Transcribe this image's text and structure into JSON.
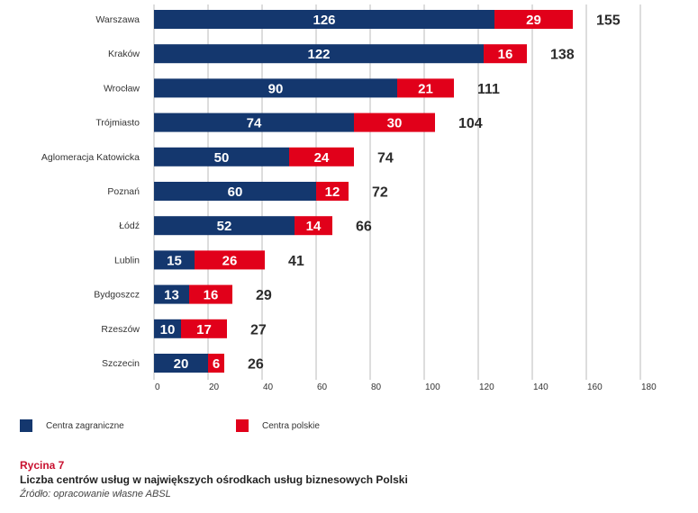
{
  "colors": {
    "foreign": "#14376e",
    "polish": "#e1001a",
    "caption_accent": "#c8102e",
    "axis": "#bbbbbb"
  },
  "chart_data": {
    "type": "bar",
    "orientation": "horizontal",
    "stacked": true,
    "categories": [
      "Warszawa",
      "Kraków",
      "Wrocław",
      "Trójmiasto",
      "Aglomeracja Katowicka",
      "Poznań",
      "Łódź",
      "Lublin",
      "Bydgoszcz",
      "Rzeszów",
      "Szczecin"
    ],
    "series": [
      {
        "name": "Centra zagraniczne",
        "values": [
          126,
          122,
          90,
          74,
          50,
          60,
          52,
          15,
          13,
          10,
          20
        ]
      },
      {
        "name": "Centra polskie",
        "values": [
          29,
          16,
          21,
          30,
          24,
          12,
          14,
          26,
          16,
          17,
          6
        ]
      }
    ],
    "totals": [
      155,
      138,
      111,
      104,
      74,
      72,
      66,
      41,
      29,
      27,
      26
    ],
    "xlim": [
      0,
      180
    ],
    "xticks": [
      0,
      20,
      40,
      60,
      80,
      100,
      120,
      140,
      160,
      180
    ],
    "grid": true,
    "legend_position": "bottom-left"
  },
  "legend": {
    "foreign_label": "Centra zagraniczne",
    "polish_label": "Centra polskie"
  },
  "caption": {
    "figure_number": "Rycina 7",
    "title": "Liczba centrów usług w największych ośrodkach usług biznesowych Polski",
    "source": "Źródło: opracowanie własne ABSL"
  }
}
